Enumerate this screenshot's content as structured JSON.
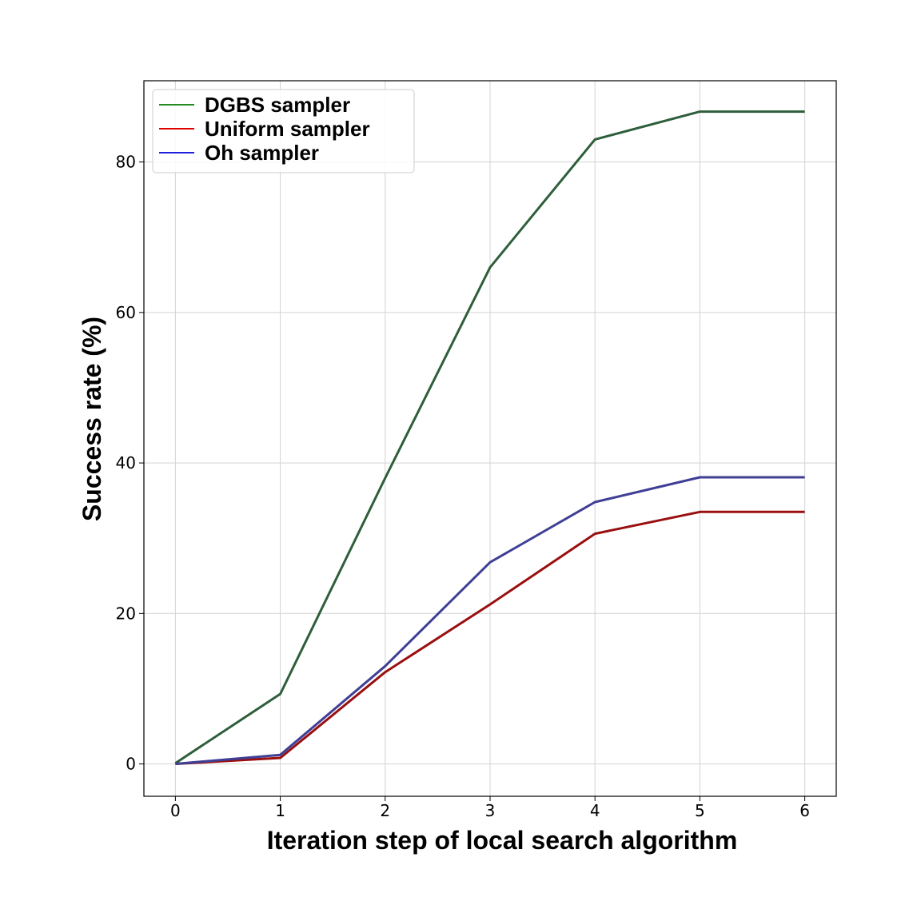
{
  "chart_data": {
    "type": "line",
    "title": "",
    "xlabel": "Iteration step of local search algorithm",
    "ylabel": "Success rate (%)",
    "x": [
      0,
      1,
      2,
      3,
      4,
      5,
      6
    ],
    "xlim": [
      -0.3,
      6.3
    ],
    "ylim": [
      -4.3,
      90.8
    ],
    "xticks": [
      0,
      1,
      2,
      3,
      4,
      5,
      6
    ],
    "yticks": [
      0,
      20,
      40,
      60,
      80
    ],
    "grid": true,
    "legend_position": "top-left",
    "series": [
      {
        "name": "DGBS sampler",
        "color": "#2e5e3a",
        "legend_color": "#228b22",
        "values": [
          0.1,
          9.3,
          38.0,
          66.0,
          83.0,
          86.7,
          86.7
        ]
      },
      {
        "name": "Uniform sampler",
        "color": "#990f0f",
        "legend_color": "#e00000",
        "values": [
          0.0,
          0.8,
          12.2,
          21.2,
          30.6,
          33.5,
          33.5
        ]
      },
      {
        "name": "Oh sampler",
        "color": "#3f3f96",
        "legend_color": "#1f1fdd",
        "values": [
          0.0,
          1.2,
          13.0,
          26.8,
          34.8,
          38.1,
          38.1
        ]
      }
    ]
  }
}
